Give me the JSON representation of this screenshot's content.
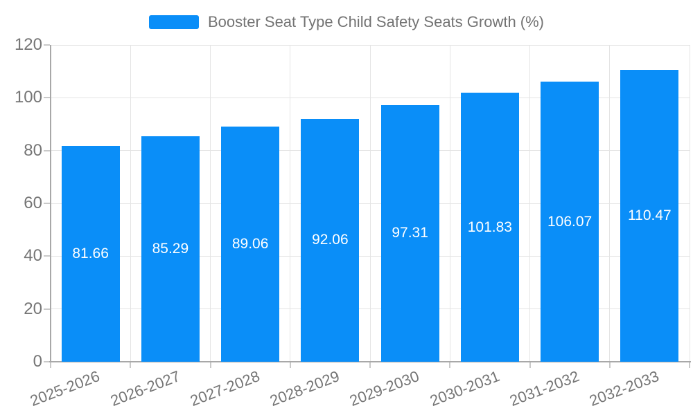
{
  "legend": {
    "label": "Booster Seat Type Child Safety Seats Growth (%)"
  },
  "colors": {
    "bar": "#0a8ef8",
    "axis_line": "#a8a8a8",
    "grid_line": "#e4e4e4",
    "tick": "#c9c9c9",
    "axis_text": "#757575",
    "value_text": "#ffffff",
    "background": "#ffffff"
  },
  "chart_data": {
    "type": "bar",
    "title": "Booster Seat Type Child Safety Seats Growth (%)",
    "categories": [
      "2025-2026",
      "2026-2027",
      "2027-2028",
      "2028-2029",
      "2029-2030",
      "2030-2031",
      "2031-2032",
      "2032-2033"
    ],
    "values": [
      81.66,
      85.29,
      89.06,
      92.06,
      97.31,
      101.83,
      106.07,
      110.47
    ],
    "value_labels": [
      "81.66",
      "85.29",
      "89.06",
      "92.06",
      "97.31",
      "101.83",
      "106.07",
      "110.47"
    ],
    "xlabel": "",
    "ylabel": "",
    "ylim": [
      0,
      120
    ],
    "yticks": [
      0,
      20,
      40,
      60,
      80,
      100,
      120
    ],
    "grid": true,
    "legend_position": "top-center",
    "value_label_position": "inside-center"
  }
}
